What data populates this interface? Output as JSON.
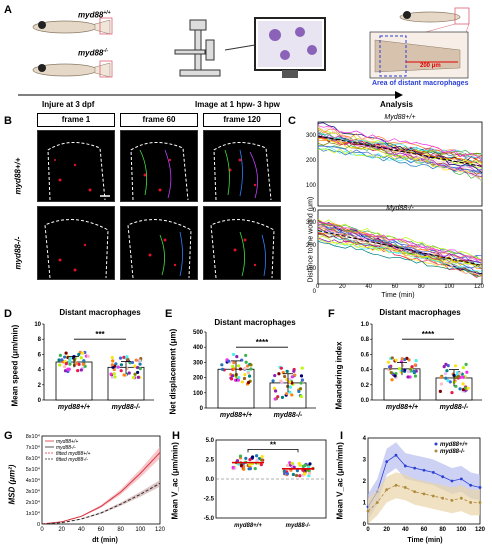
{
  "panelA": {
    "label": "A",
    "wt": "myd88",
    "wt_sup": "+/+",
    "ko": "myd88",
    "ko_sup": "-/-",
    "steps": [
      "Injure at 3 dpf",
      "Image at 1 hpw- 3 hpw",
      "Analysis"
    ],
    "scale": "200 μm",
    "area": "Area of distant macrophages"
  },
  "panelB": {
    "label": "B",
    "frames": [
      "frame 1",
      "frame 60",
      "frame 120"
    ],
    "rows": [
      "myd88+/+",
      "myd88-/-"
    ]
  },
  "panelC": {
    "label": "C",
    "top_title": "Myd88+/+",
    "bottom_title": "Myd88-/-",
    "ylabel": "Distance to the wound (μm)",
    "xlabel": "Time (min)",
    "yticks_top": [
      "300",
      "200",
      "100",
      "0"
    ],
    "yticks_bottom": [
      "300",
      "200",
      "100",
      "0"
    ],
    "xticks": [
      "0",
      "20",
      "40",
      "60",
      "80",
      "100",
      "120"
    ]
  },
  "panelD": {
    "label": "D",
    "title": "Distant macrophages",
    "ylabel": "Mean speed (μm/min)",
    "cats": [
      "myd88+/+",
      "myd88-/-"
    ],
    "sig": "***",
    "yticks": [
      "10",
      "8",
      "6",
      "4",
      "2",
      "0"
    ]
  },
  "panelE": {
    "label": "E",
    "title": "Distant macrophages",
    "ylabel": "Net displacement (μm)",
    "cats": [
      "myd88+/+",
      "myd88-/-"
    ],
    "sig": "****",
    "yticks": [
      "500",
      "400",
      "300",
      "200",
      "100",
      "0"
    ]
  },
  "panelF": {
    "label": "F",
    "title": "Distant macrophages",
    "ylabel": "Meandering index",
    "cats": [
      "myd88+/+",
      "myd88-/-"
    ],
    "sig": "****",
    "yticks": [
      "1.0",
      "0.8",
      "0.6",
      "0.4",
      "0.2",
      "0.0"
    ]
  },
  "panelG": {
    "label": "G",
    "ylabel": "MSD (μm²)",
    "xlabel": "dt (min)",
    "legend": [
      "myd88+/+",
      "myd88-/-",
      "fitted myd88+/+",
      "fitted myd88-/-"
    ],
    "yticks": [
      "8x10⁴",
      "7x10⁴",
      "6x10⁴",
      "5x10⁴",
      "4x10⁴",
      "3x10⁴",
      "2x10⁴",
      "1x10⁴",
      "0"
    ],
    "xticks": [
      "0",
      "20",
      "40",
      "60",
      "80",
      "100",
      "120"
    ]
  },
  "panelH": {
    "label": "H",
    "ylabel": "Mean V_ac (μm/min)",
    "sig": "**",
    "cats": [
      "myd88+/+",
      "myd88-/-"
    ],
    "yticks": [
      "5.0",
      "2.5",
      "0.0",
      "-2.5",
      "-5.0"
    ]
  },
  "panelI": {
    "label": "I",
    "ylabel": "Mean V_ac (μm/min)",
    "xlabel": "Time (min)",
    "legend": [
      "myd88+/+",
      "myd88-/-"
    ],
    "yticks": [
      "4",
      "3",
      "2",
      "1",
      "0"
    ],
    "xticks": [
      "0",
      "20",
      "40",
      "60",
      "80",
      "100",
      "120"
    ]
  },
  "chart_data": [
    {
      "type": "bar",
      "panel": "D",
      "title": "Distant macrophages",
      "ylabel": "Mean speed (μm/min)",
      "categories": [
        "myd88+/+",
        "myd88-/-"
      ],
      "values": [
        5.0,
        4.3
      ],
      "ylim": [
        0,
        10
      ]
    },
    {
      "type": "bar",
      "panel": "E",
      "title": "Distant macrophages",
      "ylabel": "Net displacement (μm)",
      "categories": [
        "myd88+/+",
        "myd88-/-"
      ],
      "values": [
        255,
        165
      ],
      "ylim": [
        0,
        500
      ]
    },
    {
      "type": "bar",
      "panel": "F",
      "title": "Distant macrophages",
      "ylabel": "Meandering index",
      "categories": [
        "myd88+/+",
        "myd88-/-"
      ],
      "values": [
        0.41,
        0.29
      ],
      "ylim": [
        0,
        1.0
      ]
    },
    {
      "type": "line",
      "panel": "G",
      "xlabel": "dt (min)",
      "ylabel": "MSD (μm²)",
      "x": [
        0,
        20,
        40,
        60,
        80,
        100,
        120
      ],
      "series": [
        {
          "name": "myd88+/+",
          "values": [
            0,
            2000,
            7000,
            16000,
            29000,
            46000,
            65000
          ]
        },
        {
          "name": "myd88-/-",
          "values": [
            0,
            1200,
            4500,
            10000,
            18000,
            27000,
            37000
          ]
        }
      ],
      "ylim": [
        0,
        80000
      ]
    },
    {
      "type": "bar",
      "panel": "H",
      "ylabel": "Mean V_ac (μm/min)",
      "categories": [
        "myd88+/+",
        "myd88-/-"
      ],
      "values": [
        2.1,
        1.3
      ],
      "ylim": [
        -5,
        5
      ]
    },
    {
      "type": "line",
      "panel": "I",
      "xlabel": "Time (min)",
      "ylabel": "Mean V_ac (μm/min)",
      "x": [
        0,
        10,
        20,
        30,
        40,
        50,
        60,
        70,
        80,
        90,
        100,
        110,
        120
      ],
      "series": [
        {
          "name": "myd88+/+",
          "values": [
            0.8,
            1.5,
            2.9,
            3.2,
            2.7,
            2.6,
            2.5,
            2.4,
            2.2,
            2.0,
            2.1,
            1.8,
            1.7
          ]
        },
        {
          "name": "myd88-/-",
          "values": [
            0.6,
            1.0,
            1.6,
            1.8,
            1.7,
            1.5,
            1.4,
            1.3,
            1.2,
            1.1,
            1.2,
            1.0,
            1.0
          ]
        }
      ],
      "ylim": [
        0,
        4
      ]
    }
  ]
}
